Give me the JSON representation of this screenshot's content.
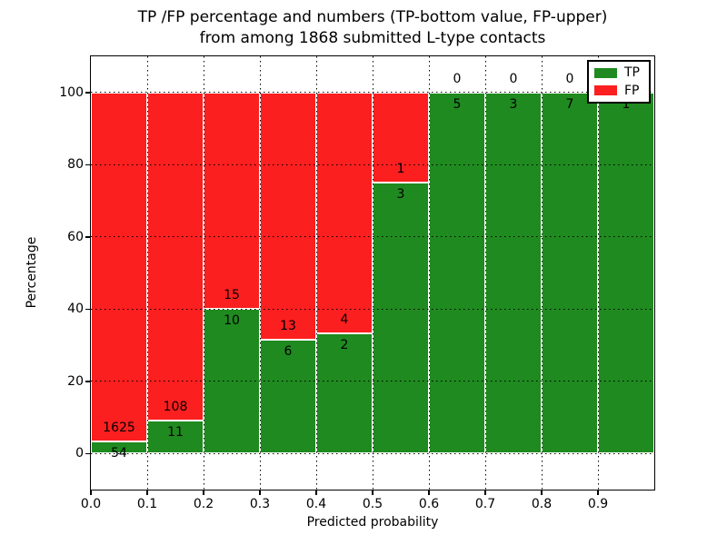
{
  "title": {
    "line1": "TP /FP percentage and numbers (TP-bottom value, FP-upper)",
    "line2": "from among 1868 submitted L-type contacts"
  },
  "axes": {
    "xlabel": "Predicted probability",
    "ylabel": "Percentage",
    "x_tick_labels": [
      "0.0",
      "0.1",
      "0.2",
      "0.3",
      "0.4",
      "0.5",
      "0.6",
      "0.7",
      "0.8",
      "0.9"
    ],
    "y_tick_labels": [
      "0",
      "20",
      "40",
      "60",
      "80",
      "100"
    ]
  },
  "legend": {
    "items": [
      {
        "label": "TP",
        "color": "#1f8a1f"
      },
      {
        "label": "FP",
        "color": "#fb1f1f"
      }
    ]
  },
  "chart_data": {
    "type": "bar",
    "stacked": true,
    "title": "TP /FP percentage and numbers (TP-bottom value, FP-upper) from among 1868 submitted L-type contacts",
    "xlabel": "Predicted probability",
    "ylabel": "Percentage",
    "xlim": [
      0.0,
      1.0
    ],
    "ylim": [
      -10,
      110
    ],
    "grid": true,
    "legend_position": "upper right",
    "total_contacts": 1868,
    "bin_width": 0.1,
    "bin_starts": [
      0.0,
      0.1,
      0.2,
      0.3,
      0.4,
      0.5,
      0.6,
      0.7,
      0.8,
      0.9
    ],
    "series": [
      {
        "name": "TP",
        "color": "#1f8a1f",
        "counts": [
          54,
          11,
          10,
          6,
          2,
          3,
          5,
          3,
          7,
          1
        ],
        "percent": [
          3.22,
          9.24,
          40.0,
          31.58,
          33.33,
          75.0,
          100.0,
          100.0,
          100.0,
          100.0
        ]
      },
      {
        "name": "FP",
        "color": "#fb1f1f",
        "counts": [
          1625,
          108,
          15,
          13,
          4,
          1,
          0,
          0,
          0,
          0
        ],
        "percent": [
          96.78,
          90.76,
          60.0,
          68.42,
          66.67,
          25.0,
          0.0,
          0.0,
          0.0,
          0.0
        ]
      }
    ]
  }
}
